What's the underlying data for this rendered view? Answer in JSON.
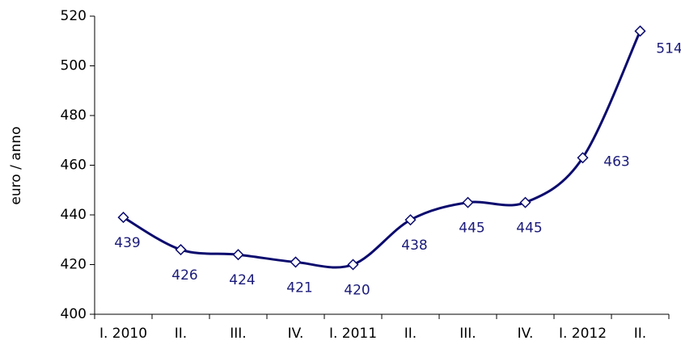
{
  "chart_data": {
    "type": "line",
    "y_label": "euro / anno",
    "categories": [
      "I. 2010",
      "II.",
      "III.",
      "IV.",
      "I. 2011",
      "II.",
      "III.",
      "IV.",
      "I. 2012",
      "II."
    ],
    "values": [
      439,
      426,
      424,
      421,
      420,
      438,
      445,
      445,
      463,
      514
    ],
    "color": "#0a0a6e",
    "ylim": [
      400,
      520
    ],
    "yticks": [
      400,
      420,
      440,
      460,
      480,
      500,
      520
    ],
    "grid": false
  }
}
